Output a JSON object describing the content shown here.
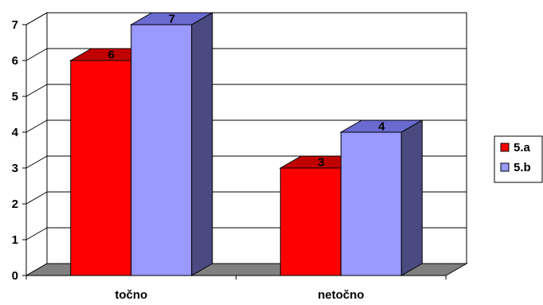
{
  "chart_data": {
    "type": "bar",
    "style": "3d-clustered-column",
    "categories": [
      "točno",
      "netočno"
    ],
    "series": [
      {
        "name": "5.a",
        "values": [
          6,
          3
        ],
        "color": "#ff0000",
        "top_color": "#c00000",
        "side_color": "#800000"
      },
      {
        "name": "5.b",
        "values": [
          7,
          4
        ],
        "color": "#9999ff",
        "top_color": "#6a6ad0",
        "side_color": "#4a4a80"
      }
    ],
    "ylim": [
      0,
      7
    ],
    "yticks": [
      "0",
      "1",
      "2",
      "3",
      "4",
      "5",
      "6",
      "7"
    ],
    "grid": true,
    "legend": "right",
    "data_labels": true,
    "floor_color": "#808080",
    "wall_color": "#ffffff",
    "title": "",
    "xlabel": "",
    "ylabel": ""
  }
}
